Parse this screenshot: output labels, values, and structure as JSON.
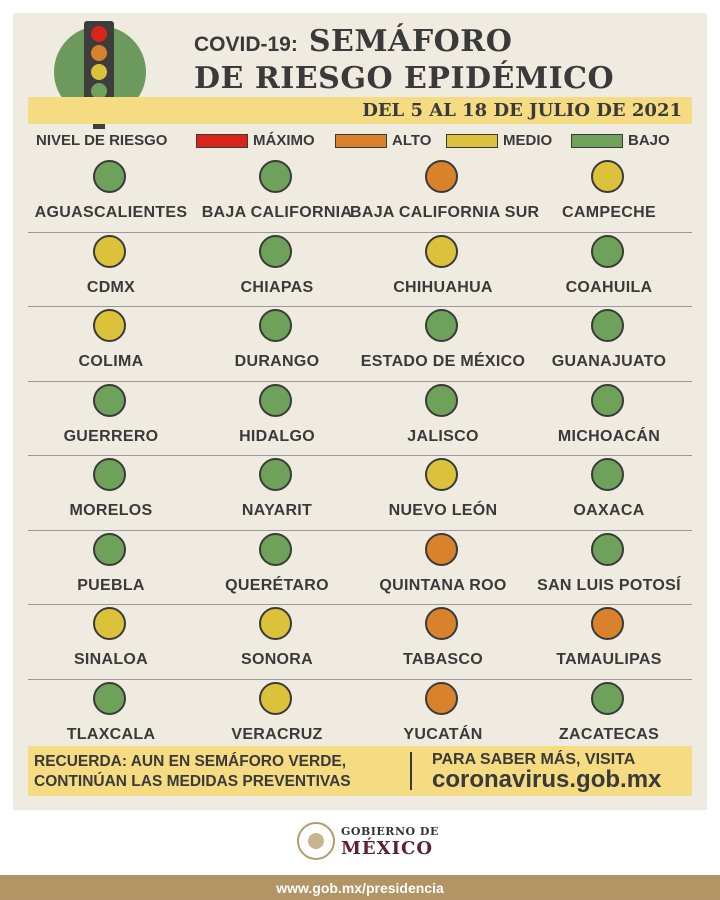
{
  "header": {
    "title_prefix": "COVID-19:",
    "title_main": "SEMÁFORO",
    "title_line2": "DE RIESGO EPIDÉMICO",
    "date_range": "DEL 5 AL 18 DE JULIO DE 2021"
  },
  "legend": {
    "title": "NIVEL DE RIESGO",
    "items": [
      {
        "label": "MÁXIMO",
        "color": "#d9241c"
      },
      {
        "label": "ALTO",
        "color": "#d9822b"
      },
      {
        "label": "MEDIO",
        "color": "#dcc23b"
      },
      {
        "label": "BAJO",
        "color": "#6ea25a"
      }
    ]
  },
  "level_colors": {
    "MÁXIMO": "#d9241c",
    "ALTO": "#d9822b",
    "MEDIO": "#dcc23b",
    "BAJO": "#6ea25a"
  },
  "states": [
    {
      "name": "AGUASCALIENTES",
      "level": "BAJO"
    },
    {
      "name": "BAJA CALIFORNIA",
      "level": "BAJO"
    },
    {
      "name": "BAJA CALIFORNIA SUR",
      "level": "ALTO"
    },
    {
      "name": "CAMPECHE",
      "level": "MEDIO"
    },
    {
      "name": "CDMX",
      "level": "MEDIO"
    },
    {
      "name": "CHIAPAS",
      "level": "BAJO"
    },
    {
      "name": "CHIHUAHUA",
      "level": "MEDIO"
    },
    {
      "name": "COAHUILA",
      "level": "BAJO"
    },
    {
      "name": "COLIMA",
      "level": "MEDIO"
    },
    {
      "name": "DURANGO",
      "level": "BAJO"
    },
    {
      "name": "ESTADO DE MÉXICO",
      "level": "BAJO"
    },
    {
      "name": "GUANAJUATO",
      "level": "BAJO"
    },
    {
      "name": "GUERRERO",
      "level": "BAJO"
    },
    {
      "name": "HIDALGO",
      "level": "BAJO"
    },
    {
      "name": "JALISCO",
      "level": "BAJO"
    },
    {
      "name": "MICHOACÁN",
      "level": "BAJO"
    },
    {
      "name": "MORELOS",
      "level": "BAJO"
    },
    {
      "name": "NAYARIT",
      "level": "BAJO"
    },
    {
      "name": "NUEVO LEÓN",
      "level": "MEDIO"
    },
    {
      "name": "OAXACA",
      "level": "BAJO"
    },
    {
      "name": "PUEBLA",
      "level": "BAJO"
    },
    {
      "name": "QUERÉTARO",
      "level": "BAJO"
    },
    {
      "name": "QUINTANA ROO",
      "level": "ALTO"
    },
    {
      "name": "SAN LUIS POTOSÍ",
      "level": "BAJO"
    },
    {
      "name": "SINALOA",
      "level": "MEDIO"
    },
    {
      "name": "SONORA",
      "level": "MEDIO"
    },
    {
      "name": "TABASCO",
      "level": "ALTO"
    },
    {
      "name": "TAMAULIPAS",
      "level": "ALTO"
    },
    {
      "name": "TLAXCALA",
      "level": "BAJO"
    },
    {
      "name": "VERACRUZ",
      "level": "MEDIO"
    },
    {
      "name": "YUCATÁN",
      "level": "ALTO"
    },
    {
      "name": "ZACATECAS",
      "level": "BAJO"
    }
  ],
  "footer": {
    "reminder_strong": "RECUERDA:",
    "reminder_rest": "AUN EN SEMÁFORO VERDE,",
    "reminder_line2": "CONTINÚAN LAS MEDIDAS PREVENTIVAS",
    "more_info": "PARA SABER MÁS, VISITA",
    "link": "coronavirus.gob.mx"
  },
  "gov": {
    "line1": "GOBIERNO DE",
    "line2": "MÉXICO",
    "seal_icon": "coat-of-arms-icon"
  },
  "url": "www.gob.mx/presidencia",
  "logo": {
    "icon": "traffic-light-icon",
    "lamps": [
      "#d9241c",
      "#d9822b",
      "#dcc23b",
      "#6ea25a"
    ],
    "disc_color": "#6c9a5c"
  }
}
